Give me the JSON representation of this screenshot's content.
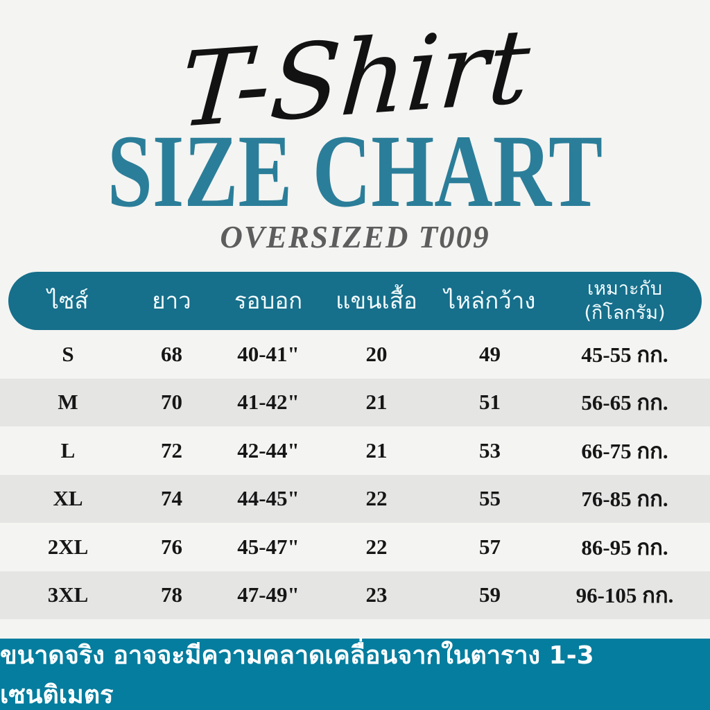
{
  "header": {
    "script_title": "T-Shirt",
    "main_title": "SIZE CHART",
    "subtitle": "OVERSIZED T009"
  },
  "table": {
    "columns": [
      {
        "label": "ไซส์"
      },
      {
        "label": "ยาว"
      },
      {
        "label": "รอบอก"
      },
      {
        "label": "แขนเสื้อ"
      },
      {
        "label": "ไหล่กว้าง"
      },
      {
        "label": "เหมาะกับ",
        "label2": "(กิโลกรัม)"
      }
    ],
    "rows": [
      {
        "cells": [
          "S",
          "68",
          "40-41\"",
          "20",
          "49",
          "45-55 กก."
        ]
      },
      {
        "cells": [
          "M",
          "70",
          "41-42\"",
          "21",
          "51",
          "56-65 กก."
        ]
      },
      {
        "cells": [
          "L",
          "72",
          "42-44\"",
          "21",
          "53",
          "66-75 กก."
        ]
      },
      {
        "cells": [
          "XL",
          "74",
          "44-45\"",
          "22",
          "55",
          "76-85 กก."
        ]
      },
      {
        "cells": [
          "2XL",
          "76",
          "45-47\"",
          "22",
          "57",
          "86-95 กก."
        ]
      },
      {
        "cells": [
          "3XL",
          "78",
          "47-49\"",
          "23",
          "59",
          "96-105 กก."
        ]
      }
    ]
  },
  "footer": {
    "note": "ขนาดจริง อาจจะมีความคลาดเคลื่อนจากในตาราง 1-3 เซนติเมตร"
  },
  "colors": {
    "header_bar_teal": "#166f8b",
    "footer_bar_teal": "#057d9e",
    "title_teal": "#2b7e99",
    "row_alt_gray": "#e5e5e4",
    "background": "#f4f4f2",
    "subtitle_gray": "#5d5d5d",
    "table_text": "#161616",
    "header_text": "#ffffff"
  },
  "chart_data": {
    "type": "table",
    "title": "T-Shirt SIZE CHART OVERSIZED T009",
    "columns": [
      "ไซส์",
      "ยาว",
      "รอบอก",
      "แขนเสื้อ",
      "ไหล่กว้าง",
      "เหมาะกับ (กิโลกรัม)"
    ],
    "rows": [
      [
        "S",
        "68",
        "40-41\"",
        "20",
        "49",
        "45-55 กก."
      ],
      [
        "M",
        "70",
        "41-42\"",
        "21",
        "51",
        "56-65 กก."
      ],
      [
        "L",
        "72",
        "42-44\"",
        "21",
        "53",
        "66-75 กก."
      ],
      [
        "XL",
        "74",
        "44-45\"",
        "22",
        "55",
        "76-85 กก."
      ],
      [
        "2XL",
        "76",
        "45-47\"",
        "22",
        "57",
        "86-95 กก."
      ],
      [
        "3XL",
        "78",
        "47-49\"",
        "23",
        "59",
        "96-105 กก."
      ]
    ],
    "note": "ขนาดจริง อาจจะมีความคลาดเคลื่อนจากในตาราง 1-3 เซนติเมตร"
  }
}
